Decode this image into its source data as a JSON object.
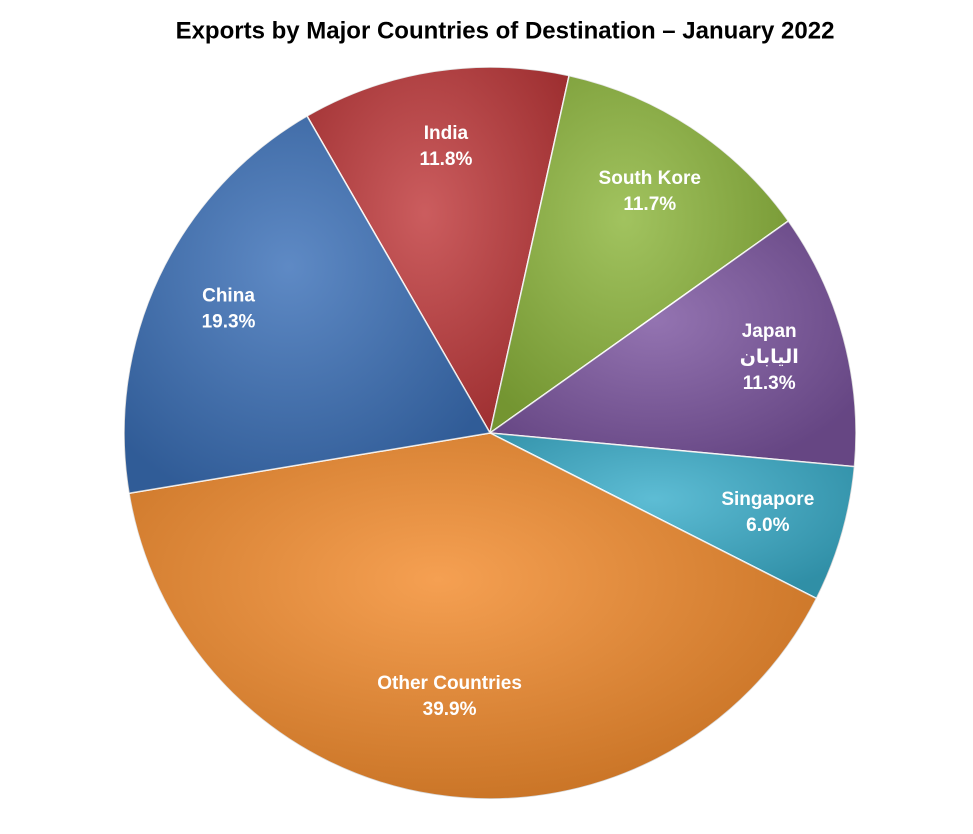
{
  "chart_data": {
    "type": "pie",
    "title": "Exports by Major Countries of Destination – January 2022",
    "categories": [
      "India",
      "South Kore",
      "Japan",
      "Singapore",
      "Other Countries",
      "China"
    ],
    "values": [
      11.8,
      11.7,
      11.3,
      6.0,
      39.9,
      19.3
    ],
    "value_labels": [
      "11.8%",
      "11.7%",
      "11.3%",
      "6.0%",
      "39.9%",
      "19.3%"
    ],
    "colors": [
      "#c0393b",
      "#8db63c",
      "#7c55a0",
      "#3aaecb",
      "#f38b2c",
      "#3b70b8"
    ],
    "annotation": {
      "category": "Japan",
      "text": "اليابان"
    }
  }
}
